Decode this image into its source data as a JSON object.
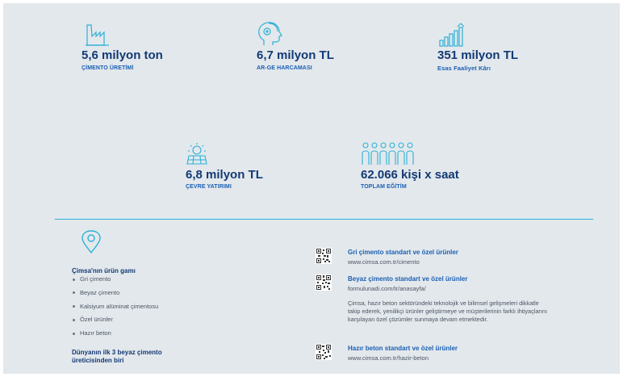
{
  "stats": [
    {
      "value": "5,6 milyon ton",
      "label": "ÇİMENTO ÜRETİMİ",
      "icon": "factory-icon"
    },
    {
      "value": "6,7 milyon TL",
      "label": "AR-GE HARCAMASI",
      "icon": "head-profile-icon"
    },
    {
      "value": "351 milyon TL",
      "label": "Esas Faaliyet Kârı",
      "icon": "growth-chart-icon"
    },
    {
      "value": "6,8 milyon TL",
      "label": "ÇEVRE YATIRIMI",
      "icon": "solar-panel-icon"
    },
    {
      "value": "62.066 kişi x saat",
      "label": "TOPLAM EĞİTİM",
      "icon": "people-group-icon"
    }
  ],
  "products": {
    "title": "Çimsa'nın ürün gamı",
    "items": [
      "Gri çimento",
      "Beyaz çimento",
      "Kalsiyum alüminat çimentosu",
      "Özel ürünler",
      "Hazır beton"
    ],
    "footnote": "Dünyanın ilk 3 beyaz çimento üreticisinden biri"
  },
  "links": [
    {
      "title": "Gri çimento standart ve özel ürünler",
      "url": "www.cimsa.com.tr/cimento"
    },
    {
      "title": "Beyaz çimento standart ve özel ürünler",
      "url": "formulunadi.com/tr/anasayfa/"
    },
    {
      "title": "Hazır beton standart ve özel ürünler",
      "url": "www.cimsa.com.tr/hazir-beton"
    }
  ],
  "paragraph": "Çimsa, hazır beton sektöründeki teknolojik ve bilimsel gelişmeleri dikkatle takip ederek, yenilikçi ürünler geliştirmeye ve müşterilerinin farklı ihtiyaçlarını karşılayan özel çözümler sunmaya devam etmektedir.",
  "colors": {
    "background": "#e3e8ec",
    "accent": "#2bb1d6",
    "navy": "#123a75",
    "blue": "#1a5fb4"
  }
}
